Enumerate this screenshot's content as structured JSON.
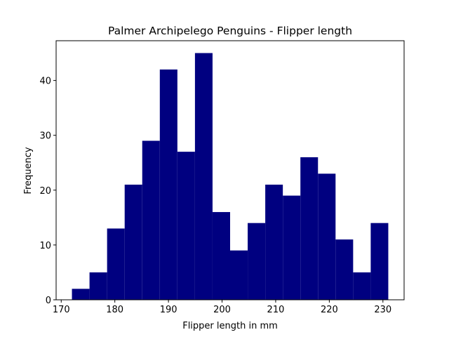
{
  "chart_data": {
    "type": "histogram",
    "title": "Palmer Archipelego Penguins - Flipper length",
    "xlabel": "Flipper length in mm",
    "ylabel": "Frequency",
    "bins": [
      172,
      175.2778,
      178.5556,
      181.8333,
      185.1111,
      188.3889,
      191.6667,
      194.9444,
      198.2222,
      201.5,
      204.7778,
      208.0556,
      211.3333,
      214.6111,
      217.8889,
      221.1667,
      224.4444,
      227.7222,
      231
    ],
    "values": [
      2,
      5,
      13,
      21,
      29,
      42,
      27,
      45,
      16,
      9,
      14,
      21,
      19,
      26,
      23,
      11,
      5,
      14
    ],
    "color": "#000080",
    "xlim": [
      169.05,
      233.95
    ],
    "xticks": [
      170,
      180,
      190,
      200,
      210,
      220,
      230
    ],
    "ylim": [
      0,
      47.25
    ],
    "yticks": [
      0,
      10,
      20,
      30,
      40
    ]
  }
}
